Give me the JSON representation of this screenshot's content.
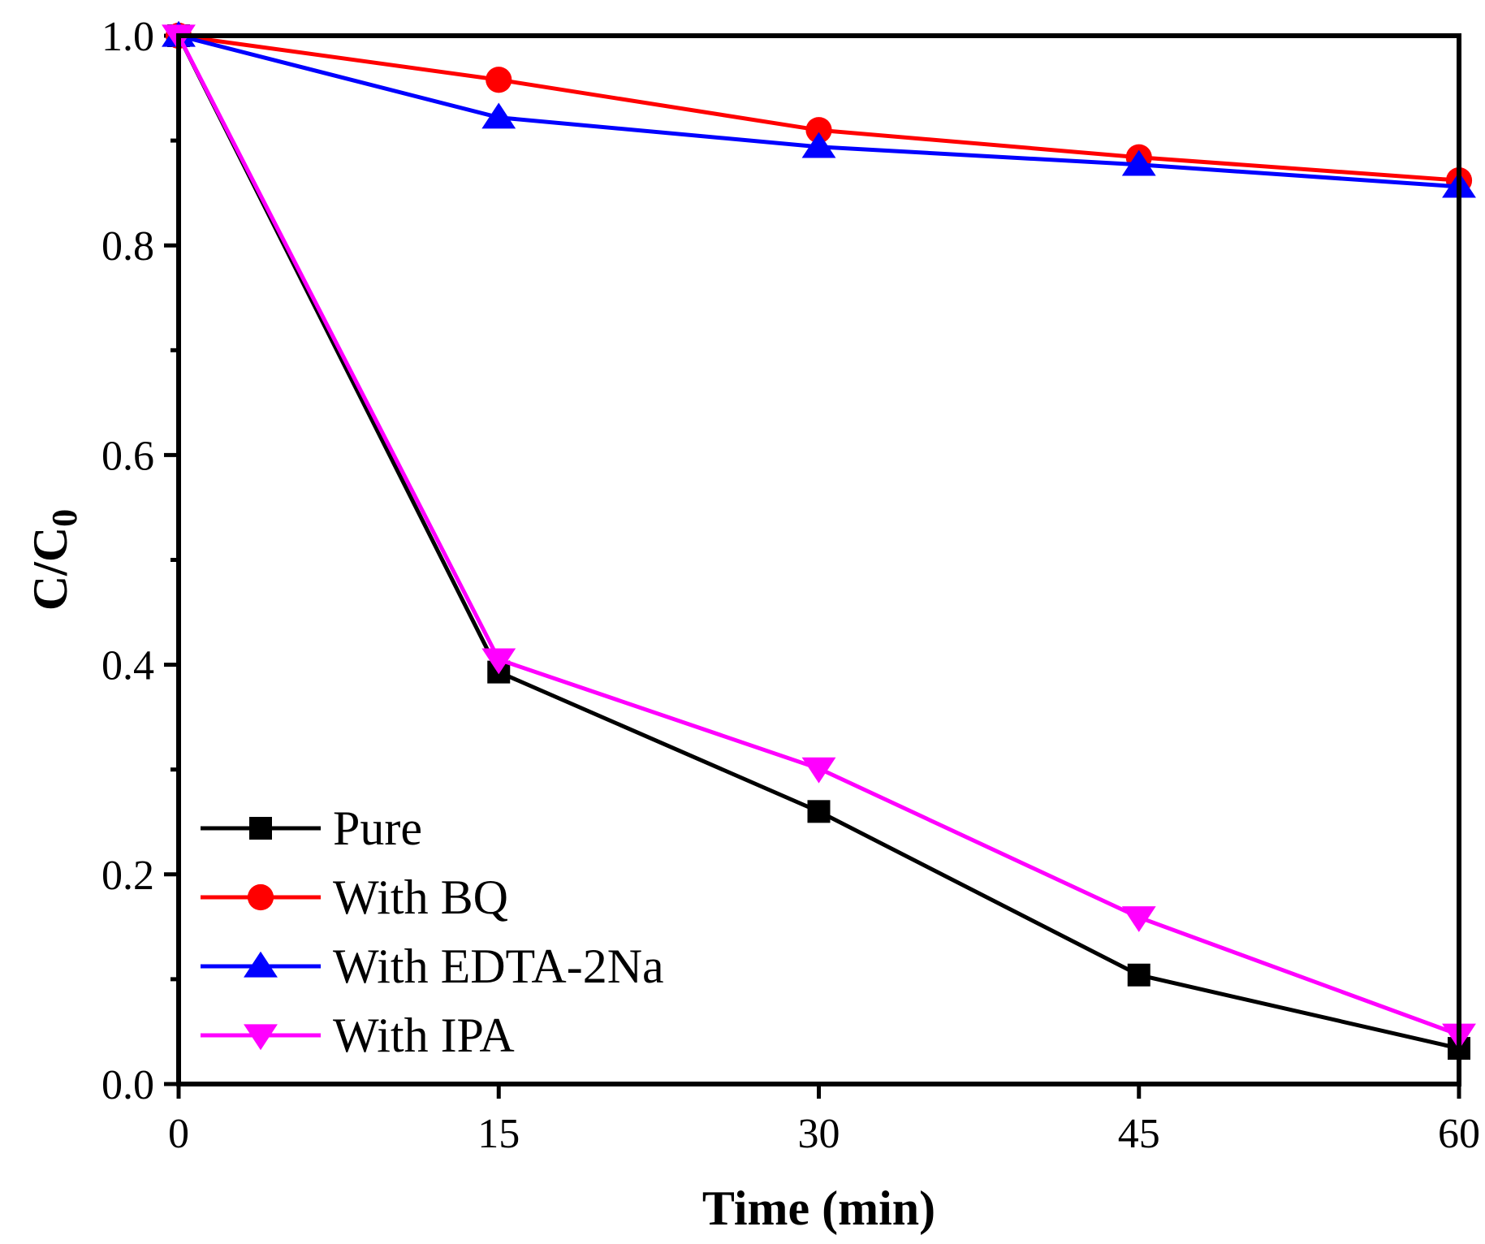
{
  "chart_data": {
    "type": "line",
    "xlabel": "Time (min)",
    "ylabel_main": "C/C",
    "ylabel_sub": "0",
    "xlim": [
      0,
      60
    ],
    "ylim": [
      0,
      1.0
    ],
    "x_ticks": [
      0,
      15,
      30,
      45,
      60
    ],
    "x_tick_labels": [
      "0",
      "15",
      "30",
      "45",
      "60"
    ],
    "y_ticks": [
      0,
      0.2,
      0.4,
      0.6,
      0.8,
      1.0
    ],
    "y_tick_labels": [
      "0.0",
      "0.2",
      "0.4",
      "0.6",
      "0.8",
      "1.0"
    ],
    "y_minor_ticks": [
      0.1,
      0.3,
      0.5,
      0.7,
      0.9
    ],
    "grid": false,
    "legend_position": "bottom-left",
    "x": [
      0,
      15,
      30,
      45,
      60
    ],
    "series": [
      {
        "name": "Pure",
        "color": "#000000",
        "marker": "square",
        "values": [
          1.0,
          0.393,
          0.26,
          0.104,
          0.034
        ]
      },
      {
        "name": "With BQ",
        "color": "#ff0000",
        "marker": "circle",
        "values": [
          1.0,
          0.958,
          0.91,
          0.884,
          0.862
        ]
      },
      {
        "name": "With EDTA-2Na",
        "color": "#0000ff",
        "marker": "triangle-up",
        "values": [
          1.0,
          0.922,
          0.894,
          0.877,
          0.856
        ]
      },
      {
        "name": "With IPA",
        "color": "#ff00ff",
        "marker": "triangle-down",
        "values": [
          1.0,
          0.405,
          0.301,
          0.159,
          0.047
        ]
      }
    ]
  }
}
